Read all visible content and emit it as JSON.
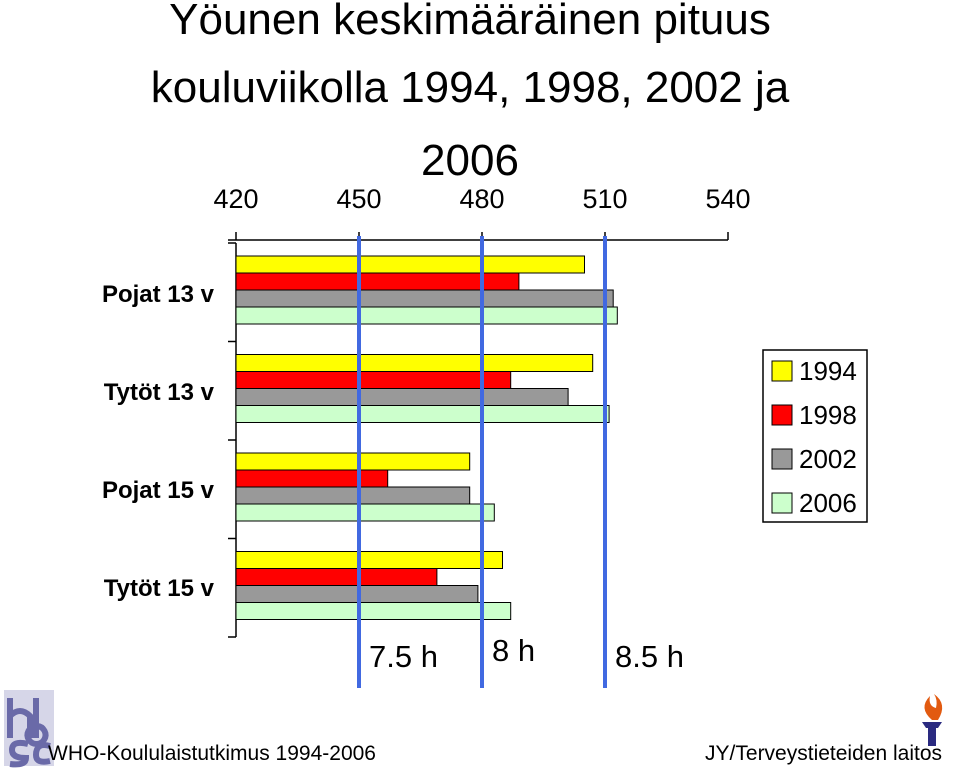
{
  "chart_data": {
    "type": "bar",
    "orientation": "horizontal",
    "title_lines": [
      "Yöunen keskimääräinen pituus",
      "kouluviikolla 1994, 1998, 2002 ja",
      "2006"
    ],
    "categories": [
      "Pojat 13 v",
      "Tytöt 13 v",
      "Pojat 15 v",
      "Tytöt 15 v"
    ],
    "series": [
      {
        "name": "1994",
        "color": "#ffff00",
        "values": [
          505,
          507,
          477,
          485
        ]
      },
      {
        "name": "1998",
        "color": "#ff0000",
        "values": [
          489,
          487,
          457,
          469
        ]
      },
      {
        "name": "2002",
        "color": "#999999",
        "values": [
          512,
          501,
          477,
          479
        ]
      },
      {
        "name": "2006",
        "color": "#ccffcc",
        "values": [
          513,
          511,
          483,
          487
        ]
      }
    ],
    "xlim": [
      420,
      540
    ],
    "xticks": [
      420,
      450,
      480,
      510,
      540
    ],
    "axis_position": "top",
    "reference_lines": [
      {
        "value": 450,
        "label": "7.5 h",
        "color": "#4169e1"
      },
      {
        "value": 480,
        "label": "8 h",
        "color": "#4169e1"
      },
      {
        "value": 510,
        "label": "8.5 h",
        "color": "#4169e1"
      }
    ],
    "legend_position": "right"
  },
  "footer": {
    "logo_text": "hbsc",
    "left": "WHO-Koululaistutkimus 1994-2006",
    "right": "JY/Terveystieteiden laitos"
  }
}
